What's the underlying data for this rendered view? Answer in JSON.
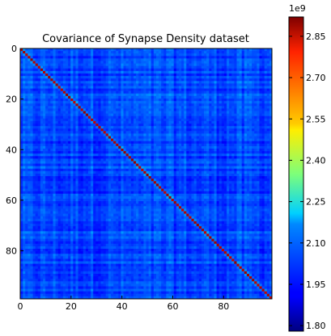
{
  "chart_data": {
    "type": "heatmap",
    "title": "Covariance of Synapse Density dataset",
    "xlabel": "",
    "ylabel": "",
    "matrix_size": 100,
    "x_ticks": [
      0,
      20,
      40,
      60,
      80
    ],
    "y_ticks": [
      0,
      20,
      40,
      60,
      80
    ],
    "xlim": [
      0,
      99
    ],
    "ylim": [
      99,
      0
    ],
    "colormap": "jet",
    "colorbar": {
      "min": 1.78,
      "max": 2.92,
      "multiplier_label": "1e9",
      "ticks": [
        "1.80",
        "1.95",
        "2.10",
        "2.25",
        "2.40",
        "2.55",
        "2.70",
        "2.85"
      ]
    },
    "off_diagonal_typical": 2.0,
    "diagonal_typical": 2.87,
    "grid": false,
    "legend": "none"
  }
}
